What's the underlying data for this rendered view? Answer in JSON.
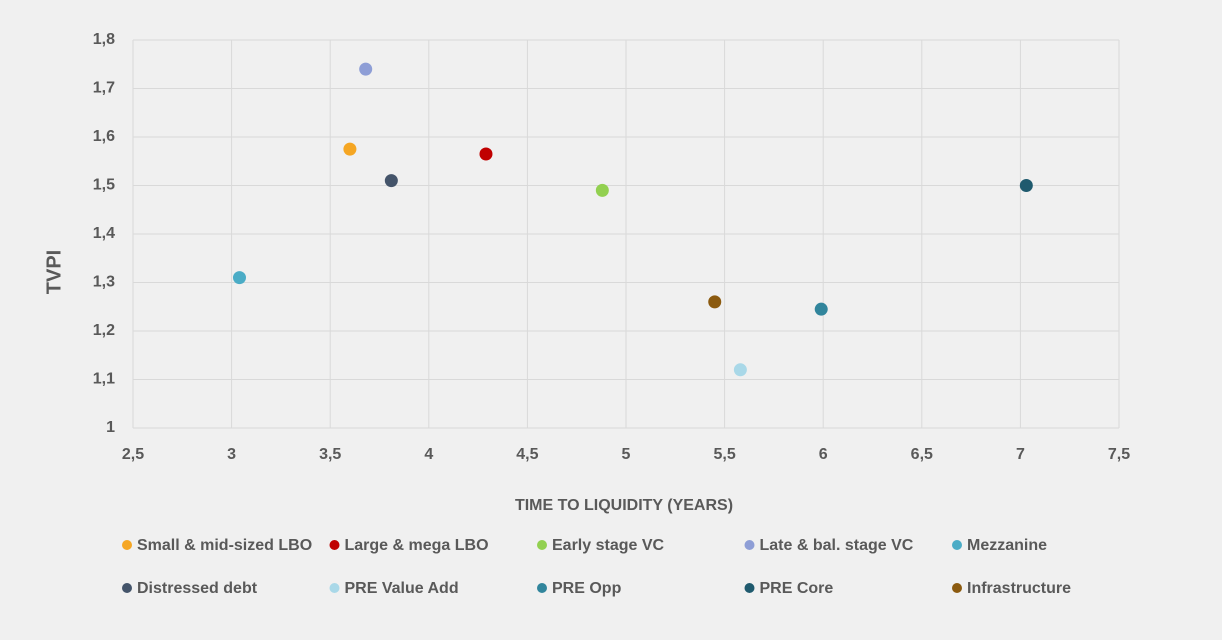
{
  "chart_data": {
    "type": "scatter",
    "x_label": "TIME TO LIQUIDITY (YEARS)",
    "y_label": "TVPI",
    "xlim": [
      2.5,
      7.5
    ],
    "xticks": [
      {
        "value": 2.5,
        "label": "2,5"
      },
      3,
      {
        "value": 3.5,
        "label": "3,5"
      },
      4,
      {
        "value": 4.5,
        "label": "4,5"
      },
      5,
      {
        "value": 5.5,
        "label": "5,5"
      },
      6,
      {
        "value": 6.5,
        "label": "6,5"
      },
      7,
      {
        "value": 7.5,
        "label": "7,5"
      }
    ],
    "ylim": [
      1,
      1.8
    ],
    "yticks": [
      1,
      {
        "value": 1.1,
        "label": "1,1"
      },
      {
        "value": 1.2,
        "label": "1,2"
      },
      {
        "value": 1.3,
        "label": "1,3"
      },
      {
        "value": 1.4,
        "label": "1,4"
      },
      {
        "value": 1.5,
        "label": "1,5"
      },
      {
        "value": 1.6,
        "label": "1,6"
      },
      {
        "value": 1.7,
        "label": "1,7"
      },
      {
        "value": 1.8,
        "label": "1,8"
      }
    ],
    "grid": true,
    "legend": "bottom",
    "series": [
      {
        "name": "Small & mid-sized LBO",
        "color": "#f5a623",
        "x": [
          3.6
        ],
        "values": [
          1.575
        ]
      },
      {
        "name": "Large & mega LBO",
        "color": "#c00000",
        "x": [
          4.29
        ],
        "values": [
          1.565
        ]
      },
      {
        "name": "Early stage VC",
        "color": "#92d050",
        "x": [
          4.88
        ],
        "values": [
          1.49
        ]
      },
      {
        "name": "Late & bal. stage VC",
        "color": "#8e9ed6",
        "x": [
          3.68
        ],
        "values": [
          1.74
        ]
      },
      {
        "name": "Mezzanine",
        "color": "#4bacc6",
        "x": [
          3.04
        ],
        "values": [
          1.31
        ]
      },
      {
        "name": "Distressed debt",
        "color": "#44546a",
        "x": [
          3.81
        ],
        "values": [
          1.51
        ]
      },
      {
        "name": "PRE Value Add",
        "color": "#a9d8e8",
        "x": [
          5.58
        ],
        "values": [
          1.12
        ]
      },
      {
        "name": "PRE Opp",
        "color": "#31859c",
        "x": [
          5.99
        ],
        "values": [
          1.245
        ]
      },
      {
        "name": "PRE Core",
        "color": "#1f5a6e",
        "x": [
          7.03
        ],
        "values": [
          1.5
        ]
      },
      {
        "name": "Infrastructure",
        "color": "#8b5a0f",
        "x": [
          5.45
        ],
        "values": [
          1.26
        ]
      }
    ]
  }
}
